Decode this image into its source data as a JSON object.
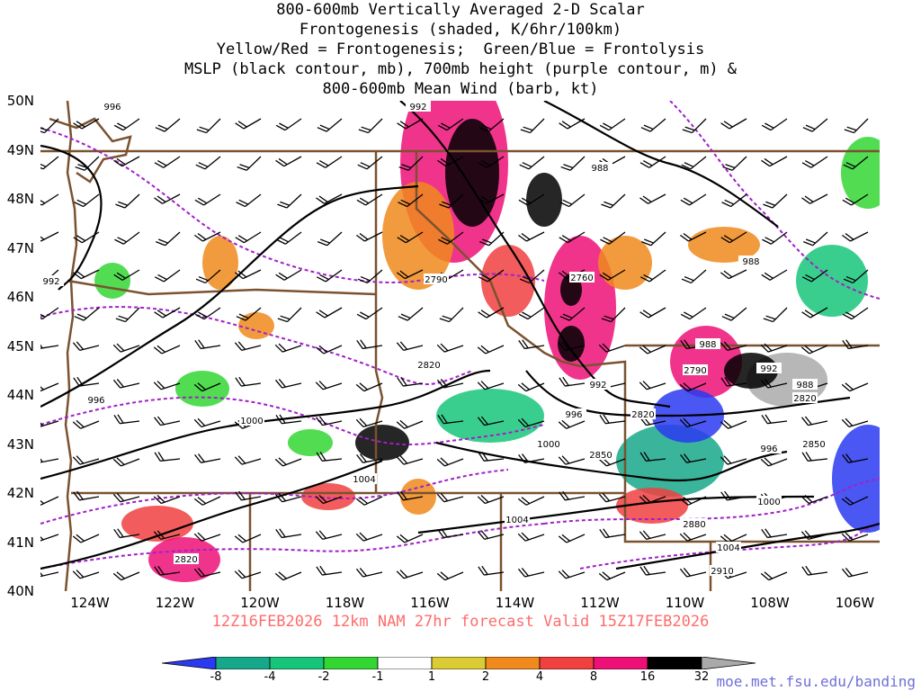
{
  "title": {
    "lines": [
      "800-600mb Vertically Averaged 2-D Scalar",
      "Frontogenesis (shaded, K/6hr/100km)",
      "Yellow/Red = Frontogenesis;  Green/Blue = Frontolysis",
      "MSLP (black contour, mb), 700mb height (purple contour, m) &",
      "800-600mb Mean Wind (barb, kt)"
    ]
  },
  "axes": {
    "latitudes": [
      "50N",
      "49N",
      "48N",
      "47N",
      "46N",
      "45N",
      "44N",
      "43N",
      "42N",
      "41N",
      "40N"
    ],
    "longitudes": [
      "124W",
      "122W",
      "120W",
      "118W",
      "116W",
      "114W",
      "112W",
      "110W",
      "108W",
      "106W"
    ]
  },
  "valid_time": "12Z16FEB2026 12km NAM 27hr forecast Valid 15Z17FEB2026",
  "colorbar": {
    "labels": [
      "-8",
      "-4",
      "-2",
      "-1",
      "1",
      "2",
      "4",
      "8",
      "16",
      "32"
    ],
    "colors": [
      "#2a3af0",
      "#17a88a",
      "#17c57a",
      "#33d633",
      "#ffffff",
      "#dccc33",
      "#f08a1c",
      "#f04040",
      "#ee1077",
      "#000000",
      "#aaaaaa"
    ]
  },
  "site": "moe.met.fsu.edu/banding",
  "contour_labels": {
    "mslp": [
      "996",
      "992",
      "992",
      "988",
      "988",
      "996",
      "1000",
      "1004",
      "1004",
      "992",
      "996",
      "1000",
      "1000",
      "1004",
      "992",
      "988",
      "988",
      "996"
    ],
    "height": [
      "2760",
      "2790",
      "2820",
      "2790",
      "2820",
      "2850",
      "2880",
      "2910",
      "2820",
      "2820",
      "2850"
    ]
  },
  "colors": {
    "mslp_contour": "#000000",
    "height_contour": "#a020c8",
    "borders": "#7a5230",
    "barbs": "#000000",
    "valid_time_text": "#ff6b6b",
    "site_text": "#6f6fd8"
  }
}
